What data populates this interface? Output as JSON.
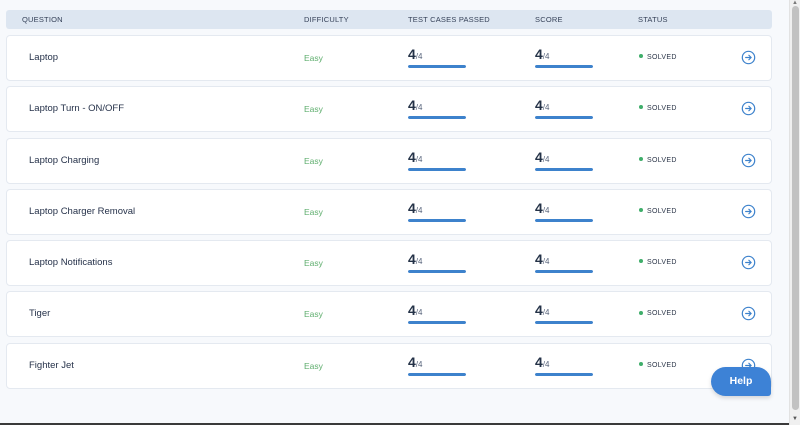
{
  "table": {
    "headers": {
      "question": "QUESTION",
      "difficulty": "DIFFICULTY",
      "test_cases": "TEST CASES PASSED",
      "score": "SCORE",
      "status": "STATUS"
    },
    "rows": [
      {
        "question": "Laptop",
        "difficulty": "Easy",
        "tc_passed": "4",
        "tc_total": "/4",
        "score": "4",
        "score_total": "/4",
        "tc_progress": 1.0,
        "score_progress": 1.0,
        "status": "SOLVED"
      },
      {
        "question": "Laptop Turn - ON/OFF",
        "difficulty": "Easy",
        "tc_passed": "4",
        "tc_total": "/4",
        "score": "4",
        "score_total": "/4",
        "tc_progress": 1.0,
        "score_progress": 1.0,
        "status": "SOLVED"
      },
      {
        "question": "Laptop Charging",
        "difficulty": "Easy",
        "tc_passed": "4",
        "tc_total": "/4",
        "score": "4",
        "score_total": "/4",
        "tc_progress": 1.0,
        "score_progress": 1.0,
        "status": "SOLVED"
      },
      {
        "question": "Laptop Charger Removal",
        "difficulty": "Easy",
        "tc_passed": "4",
        "tc_total": "/4",
        "score": "4",
        "score_total": "/4",
        "tc_progress": 1.0,
        "score_progress": 1.0,
        "status": "SOLVED"
      },
      {
        "question": "Laptop Notifications",
        "difficulty": "Easy",
        "tc_passed": "4",
        "tc_total": "/4",
        "score": "4",
        "score_total": "/4",
        "tc_progress": 1.0,
        "score_progress": 1.0,
        "status": "SOLVED"
      },
      {
        "question": "Tiger",
        "difficulty": "Easy",
        "tc_passed": "4",
        "tc_total": "/4",
        "score": "4",
        "score_total": "/4",
        "tc_progress": 1.0,
        "score_progress": 1.0,
        "status": "SOLVED"
      },
      {
        "question": "Fighter Jet",
        "difficulty": "Easy",
        "tc_passed": "4",
        "tc_total": "/4",
        "score": "4",
        "score_total": "/4",
        "tc_progress": 1.0,
        "score_progress": 1.0,
        "status": "SOLVED"
      }
    ]
  },
  "help_button": {
    "label": "Help"
  },
  "icons": {
    "row_action": "arrow-circle-right-icon",
    "status": "status-dot-icon"
  },
  "colors": {
    "accent": "#3d82cc",
    "easy": "#5fae6e",
    "solved_dot": "#3fae6a",
    "help_bg": "#3d82d6"
  }
}
